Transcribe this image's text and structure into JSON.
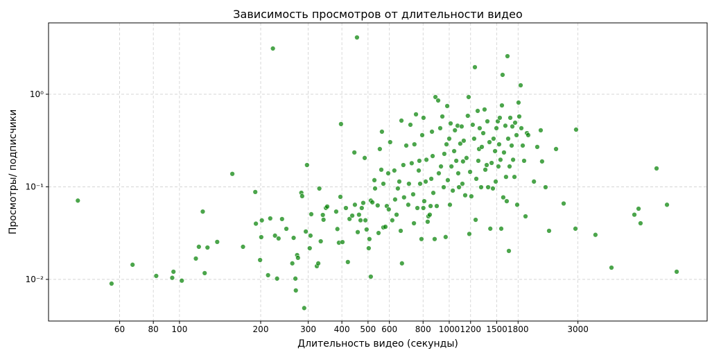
{
  "chart_data": {
    "type": "scatter",
    "title": "Зависимость просмотров от длительности видео",
    "x_label": "Длительность видео (секунды)",
    "y_label": "Просмотры/ подписчики",
    "x_log": true,
    "y_log": true,
    "grid": true,
    "color": "green",
    "xlim": [
      32.7,
      9040
    ],
    "ylim": [
      0.00355,
      5.9
    ],
    "xticks": [
      60,
      80,
      100,
      200,
      300,
      400,
      500,
      600,
      800,
      1000,
      1200,
      1500,
      1800,
      3000
    ],
    "yticks": [
      {
        "value": 0.01,
        "label": "10⁻²"
      },
      {
        "value": 0.1,
        "label": "10⁻¹"
      },
      {
        "value": 1,
        "label": "10⁰"
      }
    ],
    "x": [
      42,
      56,
      67,
      82,
      94,
      95,
      102,
      115,
      118,
      122,
      124,
      127,
      138,
      157,
      172,
      191,
      192,
      199,
      201,
      202,
      213,
      217,
      222,
      226,
      230,
      233,
      240,
      249,
      262,
      265,
      269,
      270,
      273,
      275,
      283,
      285,
      290,
      294,
      297,
      304,
      306,
      308,
      323,
      327,
      330,
      334,
      340,
      342,
      349,
      353,
      381,
      385,
      390,
      395,
      397,
      402,
      414,
      421,
      427,
      437,
      445,
      447,
      455,
      458,
      463,
      469,
      474,
      480,
      486,
      489,
      494,
      503,
      506,
      512,
      512,
      519,
      528,
      531,
      543,
      547,
      553,
      560,
      563,
      570,
      570,
      580,
      587,
      594,
      597,
      604,
      615,
      626,
      630,
      638,
      645,
      653,
      661,
      665,
      668,
      676,
      680,
      693,
      705,
      709,
      718,
      726,
      735,
      740,
      743,
      753,
      762,
      771,
      775,
      780,
      789,
      794,
      802,
      803,
      808,
      818,
      823,
      832,
      837,
      847,
      853,
      858,
      863,
      868,
      873,
      883,
      889,
      899,
      910,
      915,
      926,
      932,
      943,
      954,
      959,
      970,
      977,
      983,
      988,
      1000,
      1006,
      1012,
      1019,
      1031,
      1043,
      1050,
      1062,
      1074,
      1080,
      1087,
      1099,
      1112,
      1119,
      1125,
      1132,
      1146,
      1159,
      1172,
      1180,
      1187,
      1195,
      1208,
      1222,
      1237,
      1245,
      1253,
      1260,
      1275,
      1282,
      1290,
      1297,
      1313,
      1321,
      1337,
      1352,
      1361,
      1377,
      1385,
      1394,
      1410,
      1420,
      1436,
      1452,
      1460,
      1479,
      1487,
      1496,
      1514,
      1522,
      1531,
      1540,
      1549,
      1559,
      1568,
      1577,
      1586,
      1596,
      1615,
      1624,
      1634,
      1644,
      1654,
      1664,
      1674,
      1684,
      1704,
      1714,
      1725,
      1745,
      1755,
      1776,
      1786,
      1807,
      1818,
      1840,
      1851,
      1873,
      1895,
      1918,
      1941,
      1963,
      2061,
      2120,
      2184,
      2209,
      2276,
      2345,
      2489,
      2656,
      2937,
      2953,
      3484,
      3995,
      4857,
      5034,
      5120,
      5870,
      6416,
      6970
    ],
    "values": [
      0.071,
      0.009,
      0.0144,
      0.0109,
      0.0104,
      0.0121,
      0.0097,
      0.0168,
      0.0225,
      0.054,
      0.0117,
      0.0221,
      0.0254,
      0.138,
      0.0225,
      0.088,
      0.04,
      0.0162,
      0.0286,
      0.0434,
      0.0111,
      0.0456,
      3.12,
      0.0297,
      0.0102,
      0.0277,
      0.0449,
      0.0352,
      0.0149,
      0.0281,
      0.0102,
      0.0076,
      0.0183,
      0.0171,
      0.0863,
      0.0793,
      0.0049,
      0.0329,
      0.172,
      0.0217,
      0.0297,
      0.0506,
      0.0139,
      0.0149,
      0.0958,
      0.0258,
      0.0497,
      0.0441,
      0.0591,
      0.0612,
      0.054,
      0.035,
      0.0249,
      0.078,
      0.477,
      0.0253,
      0.059,
      0.0154,
      0.045,
      0.0488,
      0.235,
      0.064,
      4.11,
      0.0324,
      0.05,
      0.0435,
      0.059,
      0.067,
      0.205,
      0.0435,
      0.0346,
      0.0217,
      0.0273,
      0.0107,
      0.071,
      0.068,
      0.118,
      0.096,
      0.063,
      0.0317,
      0.256,
      0.153,
      0.394,
      0.108,
      0.0364,
      0.037,
      0.062,
      0.14,
      0.057,
      0.304,
      0.0435,
      0.15,
      0.073,
      0.05,
      0.096,
      0.114,
      0.0335,
      0.519,
      0.0149,
      0.172,
      0.077,
      0.279,
      0.064,
      0.108,
      0.468,
      0.18,
      0.083,
      0.0404,
      0.288,
      0.607,
      0.059,
      0.15,
      0.191,
      0.108,
      0.0273,
      0.362,
      0.059,
      0.557,
      0.07,
      0.114,
      0.196,
      0.042,
      0.048,
      0.05,
      0.062,
      0.122,
      0.394,
      0.215,
      0.086,
      0.0273,
      0.933,
      0.062,
      0.856,
      0.14,
      0.43,
      0.166,
      0.575,
      0.099,
      0.227,
      0.0287,
      0.288,
      0.746,
      0.118,
      0.331,
      0.064,
      0.484,
      0.166,
      0.091,
      0.243,
      0.408,
      0.191,
      0.457,
      0.14,
      0.099,
      0.293,
      0.449,
      0.108,
      0.188,
      0.315,
      0.081,
      0.205,
      0.585,
      0.933,
      0.031,
      0.145,
      0.079,
      0.468,
      0.331,
      1.96,
      0.044,
      0.122,
      0.661,
      0.191,
      0.256,
      0.43,
      0.099,
      0.27,
      0.38,
      0.685,
      0.153,
      0.172,
      0.51,
      0.099,
      0.304,
      0.0353,
      0.181,
      0.096,
      0.331,
      0.243,
      0.114,
      0.43,
      0.51,
      0.166,
      0.288,
      0.557,
      0.196,
      0.0353,
      0.758,
      1.62,
      0.077,
      0.235,
      0.457,
      0.128,
      0.07,
      2.58,
      0.331,
      0.0203,
      0.166,
      0.557,
      0.279,
      0.449,
      0.196,
      0.128,
      0.493,
      0.362,
      0.064,
      0.813,
      0.575,
      1.25,
      0.43,
      0.279,
      0.191,
      0.048,
      0.38,
      0.362,
      0.114,
      0.27,
      0.408,
      0.188,
      0.099,
      0.0335,
      0.256,
      0.066,
      0.0353,
      0.415,
      0.0303,
      0.0134,
      0.05,
      0.058,
      0.0404,
      0.158,
      0.064,
      0.0121
    ]
  }
}
